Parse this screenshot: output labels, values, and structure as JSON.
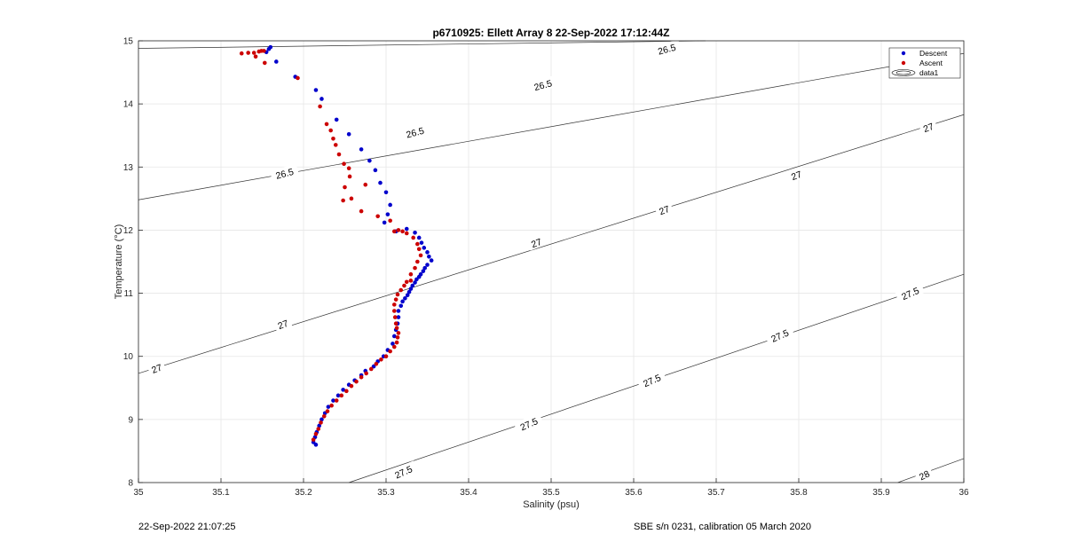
{
  "chart_data": {
    "type": "scatter",
    "title": "p6710925: Ellett Array 8 22-Sep-2022 17:12:44Z",
    "xlabel": "Salinity (psu)",
    "ylabel": "Temperature (°C)",
    "xlim": [
      35,
      36
    ],
    "ylim": [
      8,
      15
    ],
    "xticks": [
      "35",
      "35.1",
      "35.2",
      "35.3",
      "35.4",
      "35.5",
      "35.6",
      "35.7",
      "35.8",
      "35.9",
      "36"
    ],
    "yticks": [
      "8",
      "9",
      "10",
      "11",
      "12",
      "13",
      "14",
      "15"
    ],
    "grid": true,
    "legend": {
      "placement": "top-right",
      "entries": [
        {
          "label": "Descent",
          "color": "#0000cc",
          "marker": "dot"
        },
        {
          "label": "Ascent",
          "color": "#cc0000",
          "marker": "dot"
        },
        {
          "label": "data1",
          "color": "#000000",
          "marker": "contour"
        }
      ]
    },
    "series": [
      {
        "name": "Descent",
        "color": "#0000cc",
        "x": [
          35.16,
          35.158,
          35.155,
          35.167,
          35.19,
          35.215,
          35.222,
          35.24,
          35.255,
          35.27,
          35.28,
          35.287,
          35.293,
          35.3,
          35.305,
          35.302,
          35.298,
          35.312,
          35.325,
          35.335,
          35.34,
          35.343,
          35.346,
          35.35,
          35.352,
          35.355,
          35.35,
          35.347,
          35.345,
          35.342,
          35.34,
          35.337,
          35.335,
          35.332,
          35.33,
          35.328,
          35.326,
          35.323,
          35.32,
          35.318,
          35.315,
          35.315,
          35.314,
          35.312,
          35.31,
          35.308,
          35.302,
          35.297,
          35.29,
          35.285,
          35.275,
          35.27,
          35.262,
          35.255,
          35.248,
          35.242,
          35.236,
          35.23,
          35.226,
          35.222,
          35.219,
          35.216,
          35.214,
          35.212,
          35.215
        ],
        "y": [
          14.9,
          14.87,
          14.82,
          14.67,
          14.43,
          14.22,
          14.08,
          13.75,
          13.52,
          13.28,
          13.1,
          12.95,
          12.75,
          12.6,
          12.4,
          12.25,
          12.12,
          11.98,
          12.02,
          11.96,
          11.88,
          11.8,
          11.72,
          11.65,
          11.58,
          11.52,
          11.45,
          11.4,
          11.35,
          11.3,
          11.26,
          11.22,
          11.17,
          11.12,
          11.07,
          11.02,
          10.97,
          10.92,
          10.87,
          10.8,
          10.72,
          10.62,
          10.52,
          10.42,
          10.32,
          10.2,
          10.1,
          10.0,
          9.92,
          9.84,
          9.77,
          9.7,
          9.62,
          9.55,
          9.47,
          9.38,
          9.3,
          9.2,
          9.1,
          9.0,
          8.9,
          8.8,
          8.72,
          8.64,
          8.6
        ]
      },
      {
        "name": "Ascent",
        "color": "#cc0000",
        "x": [
          35.125,
          35.133,
          35.14,
          35.146,
          35.149,
          35.152,
          35.142,
          35.153,
          35.193,
          35.22,
          35.228,
          35.233,
          35.236,
          35.239,
          35.243,
          35.249,
          35.255,
          35.256,
          35.25,
          35.258,
          35.248,
          35.275,
          35.27,
          35.29,
          35.305,
          35.31,
          35.315,
          35.32,
          35.325,
          35.333,
          35.338,
          35.34,
          35.342,
          35.338,
          35.335,
          35.33,
          35.33,
          35.325,
          35.322,
          35.318,
          35.314,
          35.312,
          35.31,
          35.31,
          35.311,
          35.312,
          35.313,
          35.315,
          35.314,
          35.313,
          35.31,
          35.305,
          35.3,
          35.294,
          35.288,
          35.282,
          35.276,
          35.27,
          35.264,
          35.258,
          35.252,
          35.246,
          35.24,
          35.234,
          35.229,
          35.225,
          35.221,
          35.218,
          35.215,
          35.212
        ],
        "y": [
          14.8,
          14.81,
          14.81,
          14.83,
          14.84,
          14.84,
          14.75,
          14.65,
          14.41,
          13.96,
          13.68,
          13.58,
          13.45,
          13.35,
          13.2,
          13.05,
          12.98,
          12.85,
          12.68,
          12.5,
          12.47,
          12.72,
          12.3,
          12.22,
          12.15,
          11.98,
          12.0,
          11.98,
          11.95,
          11.88,
          11.78,
          11.7,
          11.6,
          11.5,
          11.4,
          11.3,
          11.2,
          11.18,
          11.12,
          11.05,
          10.98,
          10.9,
          10.82,
          10.72,
          10.62,
          10.52,
          10.45,
          10.37,
          10.3,
          10.22,
          10.15,
          10.08,
          10.0,
          9.95,
          9.88,
          9.8,
          9.73,
          9.67,
          9.6,
          9.53,
          9.45,
          9.38,
          9.3,
          9.22,
          9.13,
          9.05,
          8.95,
          8.85,
          8.77,
          8.68
        ]
      }
    ],
    "contours": [
      {
        "label": "26.5",
        "x": [
          35,
          35.687
        ],
        "y": [
          14.88,
          15
        ]
      },
      {
        "label": "26.5",
        "x": [
          35,
          36
        ],
        "y": [
          12.48,
          14.8
        ]
      },
      {
        "label": "27",
        "x": [
          35,
          36
        ],
        "y": [
          9.73,
          13.83
        ]
      },
      {
        "label": "27.5",
        "x": [
          35.255,
          36
        ],
        "y": [
          8.0,
          11.3
        ]
      },
      {
        "label": "28",
        "x": [
          35.92,
          36
        ],
        "y": [
          8.0,
          8.38
        ]
      }
    ],
    "contour_labels": [
      {
        "text": "26.5",
        "x": 35.64,
        "y": 14.87,
        "angle": -15
      },
      {
        "text": "26.5",
        "x": 35.49,
        "y": 14.3,
        "angle": -15
      },
      {
        "text": "26.5",
        "x": 35.335,
        "y": 13.55,
        "angle": -15
      },
      {
        "text": "26.5",
        "x": 35.177,
        "y": 12.9,
        "angle": -15
      },
      {
        "text": "27",
        "x": 35.957,
        "y": 13.63,
        "angle": -20
      },
      {
        "text": "27",
        "x": 35.797,
        "y": 12.87,
        "angle": -20
      },
      {
        "text": "27",
        "x": 35.637,
        "y": 12.32,
        "angle": -20
      },
      {
        "text": "27",
        "x": 35.482,
        "y": 11.8,
        "angle": -20
      },
      {
        "text": "27",
        "x": 35.175,
        "y": 10.51,
        "angle": -20
      },
      {
        "text": "27",
        "x": 35.022,
        "y": 9.81,
        "angle": -20
      },
      {
        "text": "27.5",
        "x": 35.935,
        "y": 11.0,
        "angle": -24
      },
      {
        "text": "27.5",
        "x": 35.777,
        "y": 10.33,
        "angle": -24
      },
      {
        "text": "27.5",
        "x": 35.622,
        "y": 9.62,
        "angle": -24
      },
      {
        "text": "27.5",
        "x": 35.473,
        "y": 8.93,
        "angle": -24
      },
      {
        "text": "27.5",
        "x": 35.321,
        "y": 8.17,
        "angle": -24
      },
      {
        "text": "28",
        "x": 35.952,
        "y": 8.12,
        "angle": -26
      }
    ]
  },
  "footer": {
    "left": "22-Sep-2022 21:07:25",
    "right": "SBE s/n 0231, calibration 05 March 2020"
  }
}
